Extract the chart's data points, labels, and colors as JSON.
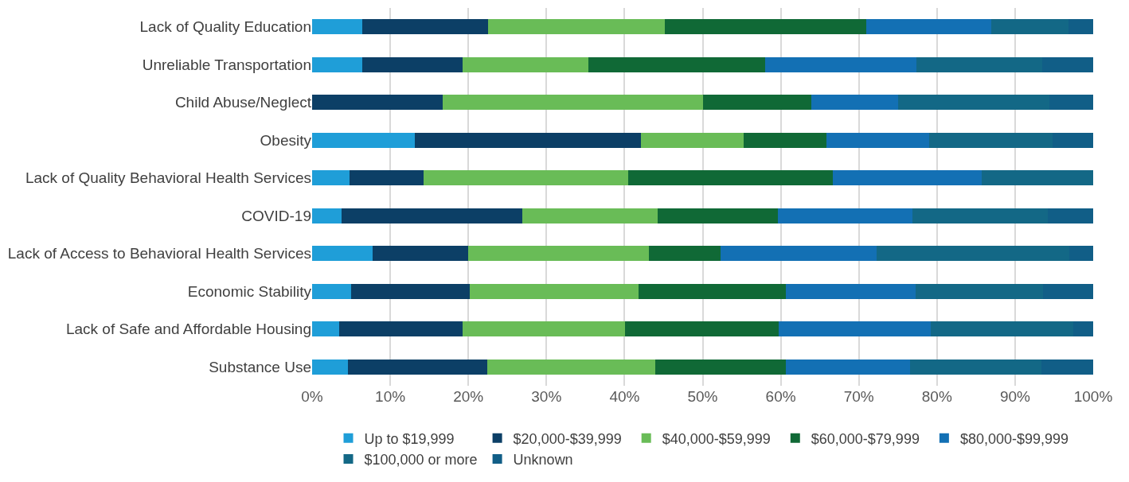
{
  "chart_data": {
    "type": "bar",
    "orientation": "horizontal",
    "stacked": true,
    "categories": [
      "Lack of Quality Education",
      "Unreliable Transportation",
      "Child Abuse/Neglect",
      "Obesity",
      "Lack of Quality Behavioral Health Services",
      "COVID-19",
      "Lack of Access to Behavioral Health Services",
      "Economic Stability",
      "Lack of Safe and Affordable Housing",
      "Substance Use"
    ],
    "series": [
      {
        "name": "Up to $19,999",
        "color": "#1f9ed8",
        "values": [
          6.4,
          6.4,
          0,
          13.2,
          4.8,
          3.8,
          7.7,
          5.0,
          3.5,
          4.6
        ]
      },
      {
        "name": "$20,000-$39,999",
        "color": "#0c3f66",
        "values": [
          16.1,
          12.9,
          16.7,
          28.9,
          9.5,
          23.1,
          12.3,
          15.2,
          15.8,
          17.8
        ]
      },
      {
        "name": "$40,000-$59,999",
        "color": "#69bc57",
        "values": [
          22.7,
          16.1,
          33.3,
          13.2,
          26.2,
          17.3,
          23.1,
          21.6,
          20.8,
          21.5
        ]
      },
      {
        "name": "$60,000-$79,999",
        "color": "#106936",
        "values": [
          25.7,
          22.6,
          13.9,
          10.5,
          26.2,
          15.4,
          9.2,
          18.9,
          19.6,
          16.8
        ]
      },
      {
        "name": "$80,000-$99,999",
        "color": "#1370b4",
        "values": [
          16.1,
          19.4,
          11.1,
          13.2,
          19.0,
          17.3,
          20.0,
          16.6,
          19.5,
          15.9
        ]
      },
      {
        "name": "$100,000 or more",
        "color": "#136886",
        "values": [
          9.8,
          16.1,
          19.4,
          15.8,
          14.3,
          17.3,
          24.6,
          16.3,
          18.3,
          16.8
        ]
      },
      {
        "name": "Unknown",
        "color": "#115e87",
        "values": [
          3.2,
          6.5,
          5.6,
          5.3,
          0,
          5.8,
          3.1,
          6.4,
          2.5,
          6.6
        ]
      }
    ],
    "xlim": [
      0,
      100
    ],
    "xticks": [
      {
        "value": 0,
        "label": "0%"
      },
      {
        "value": 10,
        "label": "10%"
      },
      {
        "value": 20,
        "label": "20%"
      },
      {
        "value": 30,
        "label": "30%"
      },
      {
        "value": 40,
        "label": "40%"
      },
      {
        "value": 50,
        "label": "50%"
      },
      {
        "value": 60,
        "label": "60%"
      },
      {
        "value": 70,
        "label": "70%"
      },
      {
        "value": 80,
        "label": "80%"
      },
      {
        "value": 90,
        "label": "90%"
      },
      {
        "value": 100,
        "label": "100%"
      }
    ],
    "grid": "x",
    "legend": "bottom"
  }
}
